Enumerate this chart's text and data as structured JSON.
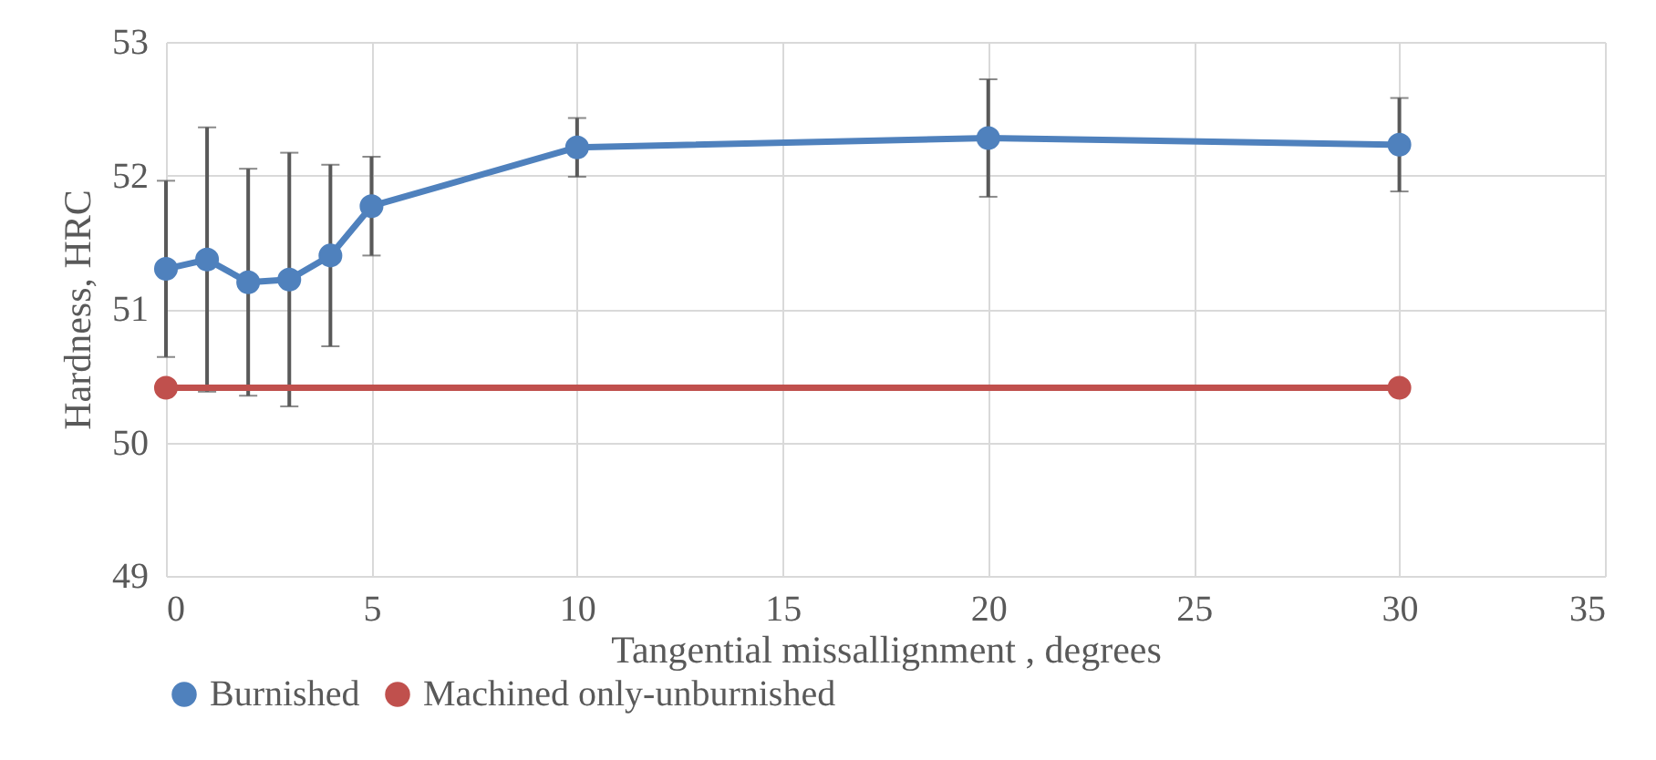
{
  "chart_data": {
    "type": "line",
    "xlabel": "Tangential missallignment , degrees",
    "ylabel": "Hardness, HRC",
    "xlim": [
      0,
      35
    ],
    "xticks": [
      0,
      5,
      10,
      15,
      20,
      25,
      30,
      35
    ],
    "ylim": [
      49,
      53
    ],
    "yticks": [
      49,
      50,
      51,
      52,
      53
    ],
    "grid": true,
    "legend": "bottom",
    "marker": "circle",
    "line_style": "solid",
    "series": [
      {
        "name": "Burnished",
        "color": "#4f81bd",
        "x": [
          0,
          1,
          2,
          3,
          4,
          5,
          10,
          20,
          30
        ],
        "values": [
          51.3,
          51.37,
          51.2,
          51.22,
          51.4,
          51.77,
          52.21,
          52.28,
          52.23
        ],
        "errors": [
          0.66,
          0.99,
          0.85,
          0.95,
          0.68,
          0.37,
          0.22,
          0.44,
          0.35
        ]
      },
      {
        "name": "Machined only-unburnished",
        "color": "#c0504d",
        "x": [
          0,
          30
        ],
        "values": [
          50.41,
          50.41
        ]
      }
    ]
  }
}
